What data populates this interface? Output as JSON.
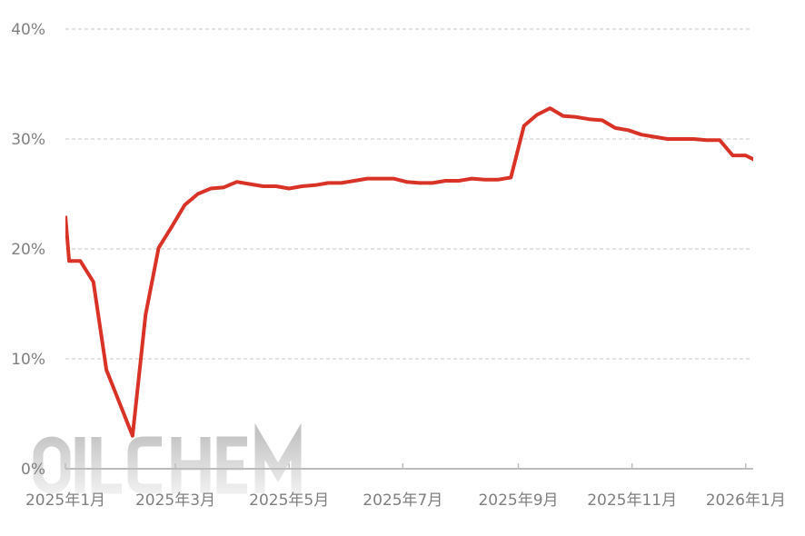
{
  "chart_data": {
    "type": "line",
    "title": "",
    "xlabel": "",
    "ylabel": "",
    "ylim": [
      0,
      40
    ],
    "xlim": [
      "2025-01-01",
      "2026-01-05"
    ],
    "y_ticks": [
      "0%",
      "10%",
      "20%",
      "30%",
      "40%"
    ],
    "y_tick_values": [
      0,
      10,
      20,
      30,
      40
    ],
    "x_ticks": [
      {
        "date": "2025-01-01",
        "label": "2025年1月"
      },
      {
        "date": "2025-03-01",
        "label": "2025年3月"
      },
      {
        "date": "2025-05-01",
        "label": "2025年5月"
      },
      {
        "date": "2025-07-01",
        "label": "2025年7月"
      },
      {
        "date": "2025-09-01",
        "label": "2025年9月"
      },
      {
        "date": "2025-11-01",
        "label": "2025年11月"
      },
      {
        "date": "2026-01-01",
        "label": "2026年1月"
      }
    ],
    "grid": "horizontal dashed",
    "line_color": "#d93226",
    "watermark": "OILCHEM",
    "series": [
      {
        "points": [
          [
            "2025-01-01",
            23.0
          ],
          [
            "2025-01-03",
            18.9
          ],
          [
            "2025-01-09",
            18.9
          ],
          [
            "2025-01-16",
            17.0
          ],
          [
            "2025-01-23",
            9.0
          ],
          [
            "2025-01-30",
            6.0
          ],
          [
            "2025-02-06",
            3.0
          ],
          [
            "2025-02-13",
            14.0
          ],
          [
            "2025-02-20",
            20.1
          ],
          [
            "2025-02-27",
            22.0
          ],
          [
            "2025-03-06",
            24.0
          ],
          [
            "2025-03-13",
            25.0
          ],
          [
            "2025-03-20",
            25.5
          ],
          [
            "2025-03-27",
            25.6
          ],
          [
            "2025-04-03",
            26.1
          ],
          [
            "2025-04-10",
            25.9
          ],
          [
            "2025-04-17",
            25.7
          ],
          [
            "2025-04-24",
            25.7
          ],
          [
            "2025-05-01",
            25.5
          ],
          [
            "2025-05-08",
            25.7
          ],
          [
            "2025-05-15",
            25.8
          ],
          [
            "2025-05-22",
            26.0
          ],
          [
            "2025-05-29",
            26.0
          ],
          [
            "2025-06-05",
            26.2
          ],
          [
            "2025-06-12",
            26.4
          ],
          [
            "2025-06-19",
            26.4
          ],
          [
            "2025-06-26",
            26.4
          ],
          [
            "2025-07-03",
            26.1
          ],
          [
            "2025-07-10",
            26.0
          ],
          [
            "2025-07-17",
            26.0
          ],
          [
            "2025-07-24",
            26.2
          ],
          [
            "2025-07-31",
            26.2
          ],
          [
            "2025-08-07",
            26.4
          ],
          [
            "2025-08-14",
            26.3
          ],
          [
            "2025-08-21",
            26.3
          ],
          [
            "2025-08-28",
            26.5
          ],
          [
            "2025-09-04",
            31.2
          ],
          [
            "2025-09-11",
            32.2
          ],
          [
            "2025-09-18",
            32.8
          ],
          [
            "2025-09-25",
            32.1
          ],
          [
            "2025-10-02",
            32.0
          ],
          [
            "2025-10-09",
            31.8
          ],
          [
            "2025-10-16",
            31.7
          ],
          [
            "2025-10-23",
            31.0
          ],
          [
            "2025-10-30",
            30.8
          ],
          [
            "2025-11-06",
            30.4
          ],
          [
            "2025-11-13",
            30.2
          ],
          [
            "2025-11-20",
            30.0
          ],
          [
            "2025-11-27",
            30.0
          ],
          [
            "2025-12-04",
            30.0
          ],
          [
            "2025-12-11",
            29.9
          ],
          [
            "2025-12-18",
            29.9
          ],
          [
            "2025-12-25",
            28.5
          ],
          [
            "2026-01-01",
            28.5
          ],
          [
            "2026-01-08",
            27.9
          ]
        ]
      }
    ]
  }
}
